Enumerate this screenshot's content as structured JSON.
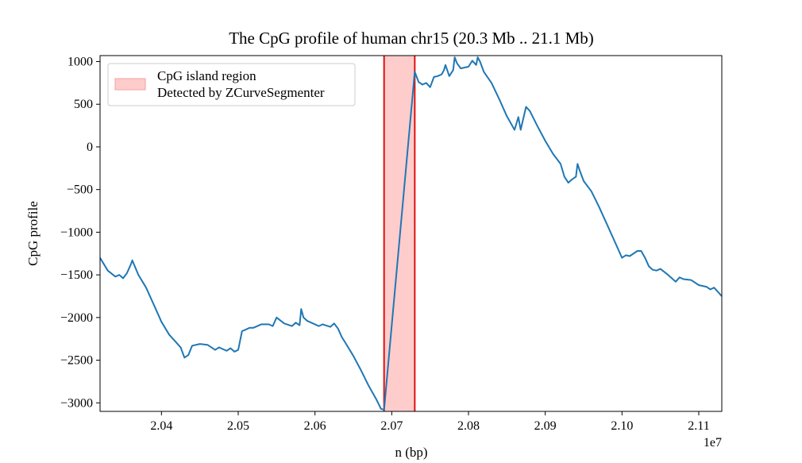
{
  "chart_data": {
    "type": "line",
    "title": "The CpG profile of human chr15 (20.3 Mb .. 21.1 Mb)",
    "xlabel": "n (bp)",
    "ylabel": "CpG profile",
    "x_offset_label": "1e7",
    "x_scale": 10000000,
    "xlim": [
      20320000,
      21130000
    ],
    "ylim": [
      -3100,
      1070
    ],
    "x_ticks": [
      20400000,
      20500000,
      20600000,
      20700000,
      20800000,
      20900000,
      21000000,
      21100000
    ],
    "x_tick_labels": [
      "2.04",
      "2.05",
      "2.06",
      "2.07",
      "2.08",
      "2.09",
      "2.10",
      "2.11"
    ],
    "y_ticks": [
      -3000,
      -2500,
      -2000,
      -1500,
      -1000,
      -500,
      0,
      500,
      1000
    ],
    "y_tick_labels": [
      "−3000",
      "−2500",
      "−2000",
      "−1500",
      "−1000",
      "−500",
      "0",
      "500",
      "1000"
    ],
    "grid": false,
    "legend_position": "top-left",
    "legend_label_lines": [
      "CpG island region",
      "Detected by ZCurveSegmenter"
    ],
    "highlight_region": {
      "x_start": 20690000,
      "x_end": 20730000,
      "fill_color": "#ffcccc",
      "edge_color": "#e01010"
    },
    "series": [
      {
        "color": "#1f77b4",
        "x": [
          20320000,
          20330000,
          20340000,
          20345000,
          20350000,
          20355000,
          20360000,
          20362000,
          20370000,
          20380000,
          20390000,
          20400000,
          20410000,
          20420000,
          20425000,
          20430000,
          20435000,
          20440000,
          20450000,
          20460000,
          20470000,
          20475000,
          20480000,
          20485000,
          20490000,
          20495000,
          20500000,
          20505000,
          20510000,
          20515000,
          20520000,
          20530000,
          20540000,
          20545000,
          20550000,
          20560000,
          20570000,
          20575000,
          20580000,
          20582000,
          20585000,
          20590000,
          20600000,
          20605000,
          20610000,
          20620000,
          20625000,
          20630000,
          20635000,
          20640000,
          20650000,
          20660000,
          20670000,
          20680000,
          20686000,
          20690000,
          20730000,
          20735000,
          20740000,
          20745000,
          20750000,
          20755000,
          20760000,
          20765000,
          20768000,
          20770000,
          20775000,
          20780000,
          20782000,
          20785000,
          20790000,
          20795000,
          20800000,
          20805000,
          20810000,
          20812000,
          20815000,
          20820000,
          20830000,
          20840000,
          20850000,
          20860000,
          20865000,
          20868000,
          20870000,
          20875000,
          20880000,
          20890000,
          20900000,
          20910000,
          20920000,
          20925000,
          20930000,
          20935000,
          20940000,
          20942000,
          20945000,
          20950000,
          20960000,
          20970000,
          20980000,
          20990000,
          21000000,
          21005000,
          21010000,
          21020000,
          21025000,
          21030000,
          21035000,
          21040000,
          21045000,
          21050000,
          21060000,
          21070000,
          21075000,
          21080000,
          21090000,
          21100000,
          21110000,
          21115000,
          21120000,
          21125000,
          21130000
        ],
        "y": [
          -1300,
          -1450,
          -1520,
          -1500,
          -1540,
          -1480,
          -1380,
          -1330,
          -1500,
          -1650,
          -1850,
          -2050,
          -2200,
          -2300,
          -2350,
          -2470,
          -2440,
          -2330,
          -2310,
          -2320,
          -2380,
          -2350,
          -2370,
          -2390,
          -2360,
          -2400,
          -2380,
          -2160,
          -2140,
          -2120,
          -2120,
          -2080,
          -2080,
          -2100,
          -2000,
          -2070,
          -2100,
          -2060,
          -2090,
          -1900,
          -2000,
          -2040,
          -2080,
          -2100,
          -2080,
          -2110,
          -2070,
          -2130,
          -2230,
          -2300,
          -2450,
          -2620,
          -2800,
          -2960,
          -3070,
          -3080,
          880,
          760,
          730,
          750,
          700,
          820,
          830,
          850,
          900,
          960,
          830,
          900,
          1050,
          980,
          920,
          930,
          940,
          1010,
          960,
          1050,
          1000,
          880,
          750,
          560,
          360,
          200,
          350,
          200,
          280,
          470,
          420,
          240,
          70,
          -80,
          -200,
          -350,
          -420,
          -380,
          -350,
          -200,
          -280,
          -400,
          -520,
          -700,
          -900,
          -1100,
          -1300,
          -1270,
          -1280,
          -1220,
          -1220,
          -1300,
          -1400,
          -1440,
          -1450,
          -1430,
          -1500,
          -1580,
          -1530,
          -1550,
          -1560,
          -1620,
          -1640,
          -1670,
          -1650,
          -1700,
          -1750
        ]
      }
    ]
  }
}
